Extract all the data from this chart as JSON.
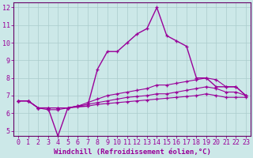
{
  "xlabel": "Windchill (Refroidissement éolien,°C)",
  "bg_color": "#cce8e8",
  "line_color": "#990099",
  "grid_color": "#aacccc",
  "spine_color": "#660066",
  "xlim": [
    -0.5,
    23.5
  ],
  "ylim": [
    4.7,
    12.3
  ],
  "yticks": [
    5,
    6,
    7,
    8,
    9,
    10,
    11,
    12
  ],
  "xticks": [
    0,
    1,
    2,
    3,
    4,
    5,
    6,
    7,
    8,
    9,
    10,
    11,
    12,
    13,
    14,
    15,
    16,
    17,
    18,
    19,
    20,
    21,
    22,
    23
  ],
  "series": [
    [
      6.7,
      6.7,
      6.3,
      6.3,
      4.7,
      6.3,
      6.4,
      6.4,
      8.5,
      9.5,
      9.5,
      10.0,
      10.5,
      10.8,
      12.0,
      10.4,
      10.1,
      9.8,
      8.0,
      8.0,
      7.5,
      7.5,
      7.5,
      7.0
    ],
    [
      6.7,
      6.7,
      6.3,
      6.3,
      6.3,
      6.3,
      6.4,
      6.6,
      6.8,
      7.0,
      7.1,
      7.2,
      7.3,
      7.4,
      7.6,
      7.6,
      7.7,
      7.8,
      7.9,
      8.0,
      7.9,
      7.5,
      7.5,
      7.0
    ],
    [
      6.7,
      6.7,
      6.3,
      6.3,
      6.3,
      6.3,
      6.4,
      6.5,
      6.6,
      6.7,
      6.8,
      6.9,
      6.95,
      7.0,
      7.1,
      7.1,
      7.2,
      7.3,
      7.4,
      7.5,
      7.4,
      7.2,
      7.2,
      7.0
    ],
    [
      6.7,
      6.7,
      6.3,
      6.2,
      6.2,
      6.3,
      6.35,
      6.4,
      6.5,
      6.55,
      6.6,
      6.65,
      6.7,
      6.75,
      6.8,
      6.85,
      6.9,
      6.95,
      7.0,
      7.1,
      7.0,
      6.9,
      6.9,
      6.9
    ]
  ],
  "tick_fontsize": 6.0,
  "xlabel_fontsize": 6.5
}
